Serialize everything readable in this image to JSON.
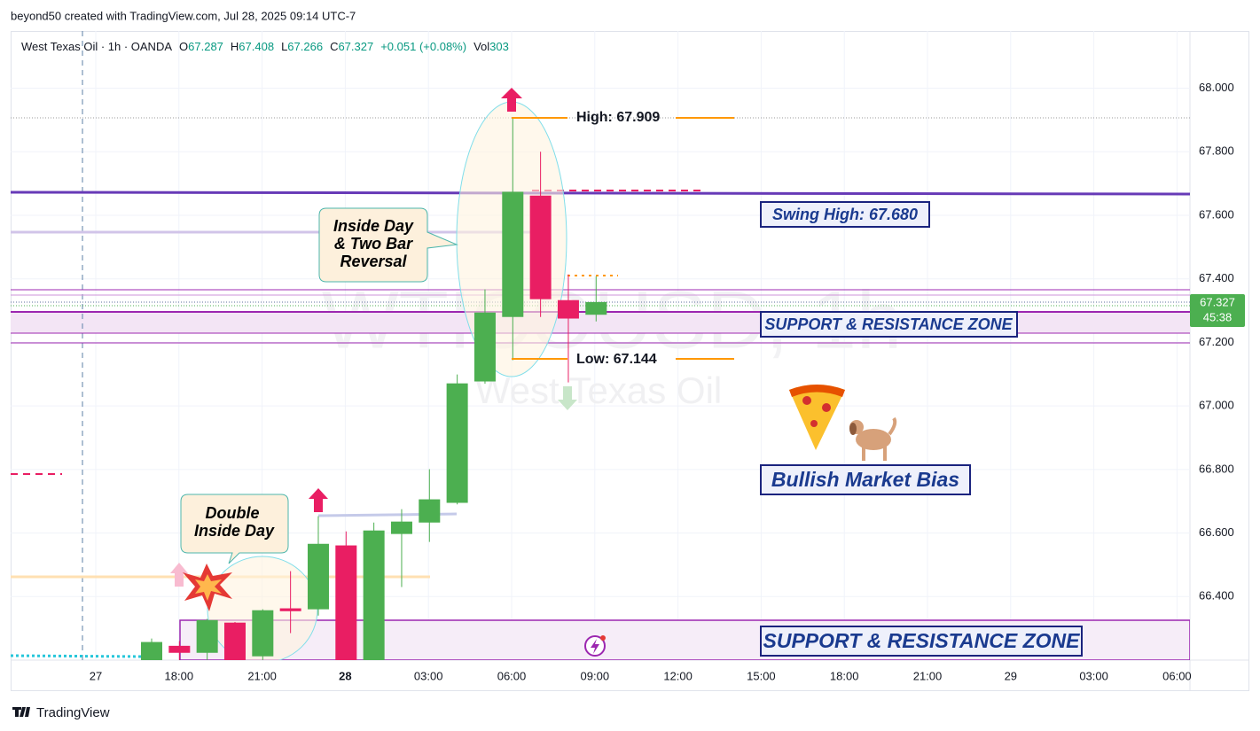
{
  "header": "beyond50 created with TradingView.com, Jul 28, 2025 09:14 UTC-7",
  "footer": "TradingView",
  "chart_data": {
    "type": "candlestick",
    "symbol": "West Texas Oil · 1h · OANDA",
    "ohlc_legend": [
      {
        "label": "O",
        "value": "67.287"
      },
      {
        "label": "H",
        "value": "67.408"
      },
      {
        "label": "L",
        "value": "67.266"
      },
      {
        "label": "C",
        "value": "67.327"
      }
    ],
    "change": "+0.051 (+0.08%)",
    "volume_label": "Vol",
    "volume": "303",
    "watermark": "WTICOUSD, 1h",
    "watermark_subtitle": "West Texas Oil",
    "open": [
      66.2,
      66.245,
      66.223,
      66.318,
      66.212,
      66.363,
      66.36,
      66.561,
      66.2,
      66.597,
      66.633,
      66.695,
      67.077,
      67.28,
      67.662,
      67.333,
      67.287
    ],
    "high": [
      66.268,
      66.26,
      66.33,
      66.32,
      66.36,
      66.48,
      66.653,
      66.605,
      66.633,
      66.675,
      66.801,
      67.099,
      67.367,
      67.909,
      67.8,
      67.414,
      67.408
    ],
    "low": [
      66.2,
      66.2,
      66.2,
      66.2,
      66.2,
      66.285,
      66.34,
      66.2,
      66.2,
      66.43,
      66.572,
      66.69,
      67.07,
      67.144,
      67.28,
      67.074,
      67.266
    ],
    "close": [
      66.257,
      66.223,
      66.326,
      66.2,
      66.357,
      66.354,
      66.566,
      66.2,
      66.608,
      66.636,
      66.706,
      67.071,
      67.294,
      67.674,
      67.336,
      67.275,
      67.327
    ],
    "up_color": "#4caf50",
    "down_color": "#e91e63",
    "ylim": [
      66.2,
      68.18
    ],
    "yticks": [
      {
        "value": 66.4,
        "label": "66.400"
      },
      {
        "value": 66.6,
        "label": "66.600"
      },
      {
        "value": 66.8,
        "label": "66.800"
      },
      {
        "value": 67,
        "label": "67.000"
      },
      {
        "value": 67.2,
        "label": "67.200"
      },
      {
        "value": 67.4,
        "label": "67.400"
      },
      {
        "value": 67.6,
        "label": "67.600"
      },
      {
        "value": 67.8,
        "label": "67.800"
      },
      {
        "value": 68,
        "label": "68.000"
      }
    ],
    "xtick_labels": [
      "27",
      "18:00",
      "21:00",
      "28",
      "03:00",
      "06:00",
      "09:00",
      "12:00",
      "15:00",
      "18:00",
      "21:00",
      "29",
      "03:00",
      "06:00"
    ],
    "last_price_label": "67.327",
    "countdown": "45:38",
    "annotations": {
      "inside_day": [
        "Inside Day",
        "& Two Bar",
        "Reversal"
      ],
      "double_inside": [
        "Double",
        "Inside Day"
      ],
      "high": "High: 67.909",
      "low": "Low: 67.144",
      "swing_high": "Swing High: 67.680",
      "zone_upper": "SUPPORT & RESISTANCE ZONE",
      "zone_lower": "SUPPORT & RESISTANCE ZONE",
      "bias": "Bullish Market Bias"
    }
  }
}
